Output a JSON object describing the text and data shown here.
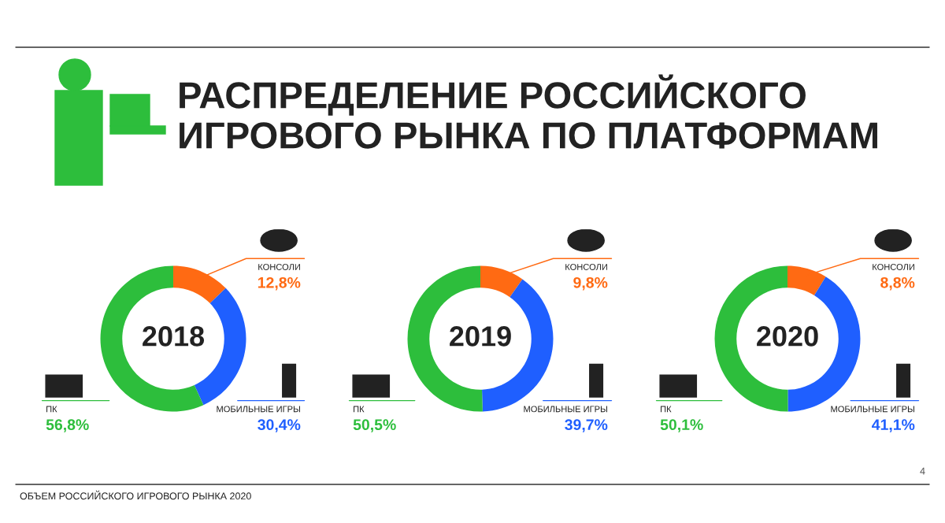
{
  "chart_data": [
    {
      "type": "donut",
      "title": "2018",
      "categories": [
        "КОНСОЛИ",
        "МОБИЛЬНЫЕ ИГРЫ",
        "ПК"
      ],
      "values": [
        12.8,
        30.4,
        56.8
      ],
      "colors": [
        "#ff6a13",
        "#1f5fff",
        "#2dbe3c"
      ],
      "value_labels": [
        "12,8%",
        "30,4%",
        "56,8%"
      ],
      "annotations": [
        "РАСПРЕДЕЛЕНИЕ РОССИЙСКОГО ИГРОВОГО РЫНКА ПО ПЛАТФОРМАМ",
        "ОБЪЕМ РОССИЙСКОГО ИГРОВОГО РЫНКА 2020",
        "4"
      ]
    },
    {
      "type": "donut",
      "title": "2019",
      "categories": [
        "КОНСОЛИ",
        "МОБИЛЬНЫЕ ИГРЫ",
        "ПК"
      ],
      "values": [
        9.8,
        39.7,
        50.5
      ],
      "colors": [
        "#ff6a13",
        "#1f5fff",
        "#2dbe3c"
      ],
      "value_labels": [
        "9,8%",
        "39,7%",
        "50,5%"
      ]
    },
    {
      "type": "donut",
      "title": "2020",
      "categories": [
        "КОНСОЛИ",
        "МОБИЛЬНЫЕ ИГРЫ",
        "ПК"
      ],
      "values": [
        8.8,
        41.1,
        50.1
      ],
      "colors": [
        "#ff6a13",
        "#1f5fff",
        "#2dbe3c"
      ],
      "value_labels": [
        "8,8%",
        "41,1%",
        "50,1%"
      ]
    }
  ]
}
